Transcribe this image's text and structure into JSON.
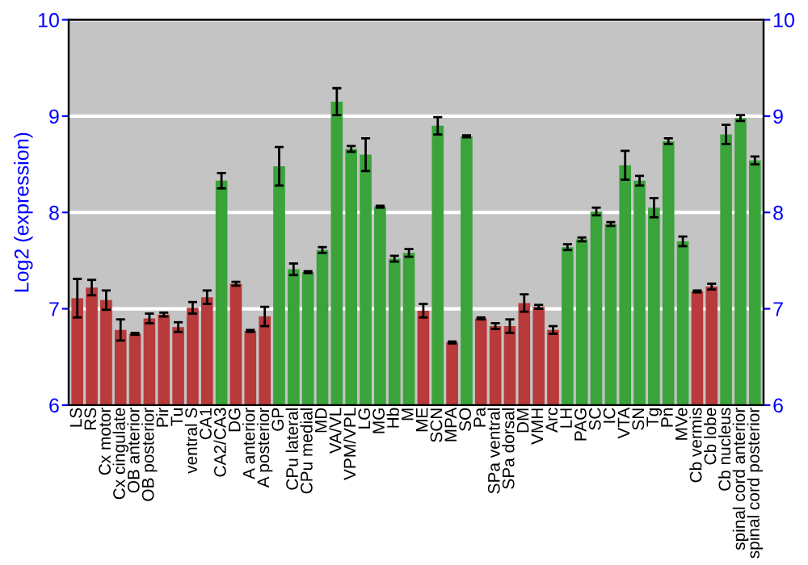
{
  "chart_data": {
    "type": "bar",
    "ylabel": "Log2 (expression)",
    "categories": [
      "LS",
      "RS",
      "Cx motor",
      "Cx cingulate",
      "OB anterior",
      "OB posterior",
      "Pir",
      "Tu",
      "ventral S",
      "CA1",
      "CA2/CA3",
      "DG",
      "A anterior",
      "A posterior",
      "GP",
      "CPu lateral",
      "CPu medial",
      "MD",
      "VA/VL",
      "VPM/VPL",
      "LG",
      "MG",
      "Hb",
      "M",
      "ME",
      "SCN",
      "MPA",
      "SO",
      "Pa",
      "SPa ventral",
      "SPa dorsal",
      "DM",
      "VMH",
      "Arc",
      "LH",
      "PAG",
      "SC",
      "IC",
      "VTA",
      "SN",
      "Tg",
      "Pn",
      "MVe",
      "Cb vermis",
      "Cb lobe",
      "Cb nucleus",
      "spinal cord anterior",
      "spinal cord posterior"
    ],
    "values": [
      7.11,
      7.22,
      7.09,
      6.78,
      6.74,
      6.9,
      6.94,
      6.81,
      7.01,
      7.12,
      8.33,
      7.26,
      6.77,
      6.92,
      8.48,
      7.41,
      7.38,
      7.61,
      9.15,
      8.66,
      8.6,
      8.06,
      7.52,
      7.58,
      6.98,
      8.9,
      6.65,
      8.79,
      6.9,
      6.82,
      6.82,
      7.06,
      7.02,
      6.78,
      7.64,
      7.72,
      8.01,
      7.88,
      8.49,
      8.33,
      8.05,
      8.74,
      7.7,
      7.18,
      7.23,
      8.81,
      8.98,
      8.54
    ],
    "errors": [
      0.2,
      0.08,
      0.1,
      0.11,
      0.01,
      0.05,
      0.02,
      0.05,
      0.06,
      0.07,
      0.08,
      0.02,
      0.01,
      0.1,
      0.2,
      0.06,
      0.01,
      0.03,
      0.14,
      0.03,
      0.17,
      0.01,
      0.03,
      0.04,
      0.07,
      0.09,
      0.01,
      0.01,
      0.01,
      0.03,
      0.07,
      0.09,
      0.02,
      0.04,
      0.03,
      0.02,
      0.04,
      0.02,
      0.15,
      0.05,
      0.1,
      0.03,
      0.05,
      0.01,
      0.03,
      0.1,
      0.03,
      0.04
    ],
    "colors": [
      "#b83a3a",
      "#b83a3a",
      "#b83a3a",
      "#b83a3a",
      "#b83a3a",
      "#b83a3a",
      "#b83a3a",
      "#b83a3a",
      "#b83a3a",
      "#b83a3a",
      "#3aa33a",
      "#b83a3a",
      "#b83a3a",
      "#b83a3a",
      "#3aa33a",
      "#3aa33a",
      "#3aa33a",
      "#3aa33a",
      "#3aa33a",
      "#3aa33a",
      "#3aa33a",
      "#3aa33a",
      "#3aa33a",
      "#3aa33a",
      "#b83a3a",
      "#3aa33a",
      "#b83a3a",
      "#3aa33a",
      "#b83a3a",
      "#b83a3a",
      "#b83a3a",
      "#b83a3a",
      "#b83a3a",
      "#b83a3a",
      "#3aa33a",
      "#3aa33a",
      "#3aa33a",
      "#3aa33a",
      "#3aa33a",
      "#3aa33a",
      "#3aa33a",
      "#3aa33a",
      "#3aa33a",
      "#b83a3a",
      "#b83a3a",
      "#3aa33a",
      "#3aa33a",
      "#3aa33a"
    ],
    "ylim": [
      6,
      10
    ],
    "yticks": [
      6,
      7,
      8,
      9,
      10
    ],
    "y2lim": [
      6,
      10
    ],
    "y2ticks": [
      6,
      7,
      8,
      9,
      10
    ],
    "grid": "y"
  }
}
